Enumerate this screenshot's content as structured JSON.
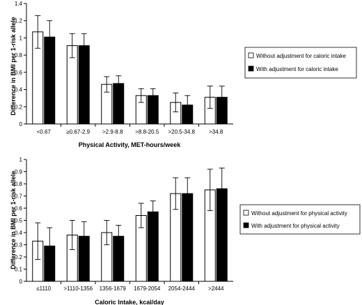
{
  "chart_data": [
    {
      "type": "bar",
      "xlabel": "Physical Activity, MET-hours/week",
      "ylabel": "Difference in BMI per 1-risk allele",
      "ylim": [
        0,
        1.4
      ],
      "yticks": [
        "0",
        "0.2",
        "0.4",
        "0.6",
        "0.8",
        "1",
        "1.2",
        "1.4"
      ],
      "grid": false,
      "legend_position": "right",
      "categories": [
        "<0.67",
        "≥0.67-2.9",
        ">2.9-8.8",
        ">8.8-20.5",
        ">20.5-34.8",
        ">34.8"
      ],
      "series": [
        {
          "name": "Without adjustment for caloric intake",
          "color": "#ffffff",
          "values": [
            1.07,
            0.91,
            0.46,
            0.33,
            0.25,
            0.31
          ],
          "error_upper": [
            1.26,
            1.05,
            0.55,
            0.41,
            0.36,
            0.44
          ],
          "error_lower": [
            0.88,
            0.77,
            0.37,
            0.25,
            0.14,
            0.18
          ]
        },
        {
          "name": "With adjustment for caloric intake",
          "color": "#000000",
          "values": [
            1.01,
            0.91,
            0.47,
            0.33,
            0.22,
            0.31
          ],
          "error_upper": [
            1.2,
            1.05,
            0.56,
            0.41,
            0.33,
            0.44
          ],
          "error_lower": [
            0.82,
            0.77,
            0.38,
            0.25,
            0.11,
            0.18
          ]
        }
      ]
    },
    {
      "type": "bar",
      "xlabel": "Caloric Intake, kcal/day",
      "ylabel": "Difference in BMI per 1-risk allele",
      "ylim": [
        0,
        1
      ],
      "yticks": [
        "0",
        "0.1",
        "0.2",
        "0.3",
        "0.4",
        "0.5",
        "0.6",
        "0.7",
        "0.8",
        "0.9",
        "1"
      ],
      "grid": false,
      "legend_position": "right",
      "categories": [
        "≤1110",
        ">1110-1356",
        "1356-1679",
        "1679-2054",
        "2054-2444",
        ">2444"
      ],
      "series": [
        {
          "name": "Without adjustment for physical activity",
          "color": "#ffffff",
          "values": [
            0.33,
            0.38,
            0.4,
            0.54,
            0.72,
            0.75
          ],
          "error_upper": [
            0.48,
            0.5,
            0.5,
            0.64,
            0.85,
            0.92
          ],
          "error_lower": [
            0.18,
            0.26,
            0.3,
            0.44,
            0.59,
            0.58
          ]
        },
        {
          "name": "With adjustment for physical activity",
          "color": "#000000",
          "values": [
            0.29,
            0.37,
            0.37,
            0.57,
            0.72,
            0.76
          ],
          "error_upper": [
            0.44,
            0.49,
            0.46,
            0.66,
            0.85,
            0.93
          ],
          "error_lower": [
            0.14,
            0.25,
            0.28,
            0.48,
            0.59,
            0.59
          ]
        }
      ]
    }
  ]
}
